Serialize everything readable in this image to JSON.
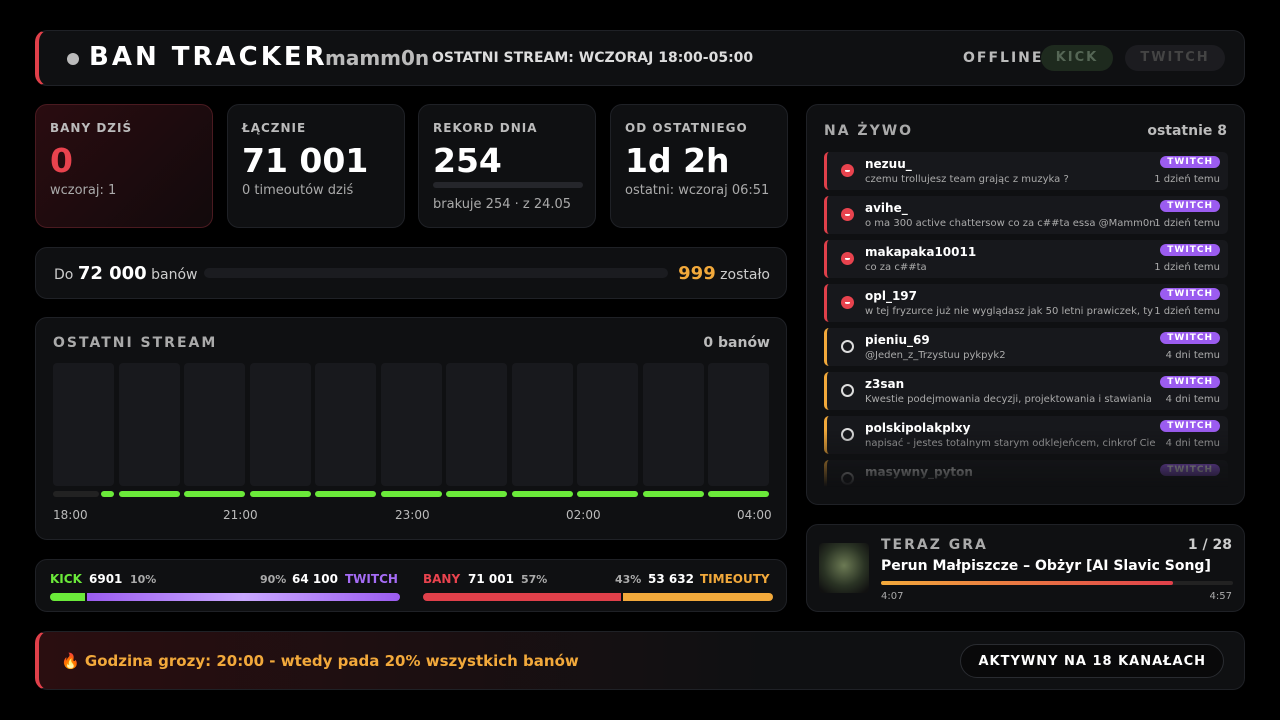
{
  "header": {
    "title": "BAN TRACKER",
    "channel": "mamm0n",
    "last_stream": "OSTATNI STREAM: WCZORAJ 18:00-05:00",
    "status": "OFFLINE",
    "platforms": [
      "KICK",
      "TWITCH"
    ]
  },
  "stats": [
    {
      "label": "BANY DZIŚ",
      "value": "0",
      "sub": "wczoraj: 1"
    },
    {
      "label": "ŁĄCZNIE",
      "value": "71 001",
      "sub": "0 timeoutów dziś"
    },
    {
      "label": "REKORD DNIA",
      "value": "254",
      "sub": "brakuje 254 · z 24.05"
    },
    {
      "label": "OD OSTATNIEGO",
      "value": "1d 2h",
      "sub": "ostatni: wczoraj 06:51"
    }
  ],
  "goal": {
    "prefix": "Do",
    "target": "72 000",
    "unit": "banów",
    "remaining": "999",
    "remaining_label": "zostało"
  },
  "last_stream": {
    "title": "OSTATNI STREAM",
    "total": "0 banów",
    "times": [
      "18:00",
      "21:00",
      "23:00",
      "02:00",
      "04:00"
    ]
  },
  "split": {
    "kick": {
      "name": "KICK",
      "count": "6901",
      "share": "10%"
    },
    "twitch": {
      "name": "TWITCH",
      "count": "64 100",
      "share": "90%"
    },
    "bans": {
      "name": "BANY",
      "count": "71 001",
      "share": "57%"
    },
    "timeouts": {
      "name": "TIMEOUTY",
      "count": "53 632",
      "share": "43%"
    }
  },
  "feed": {
    "title": "NA ŻYWO",
    "subtitle": "ostatnie 8",
    "items": [
      {
        "user": "nezuu_",
        "message": "czemu trollujesz team grając z muzyka ?",
        "platform": "TWITCH",
        "time": "1 dzień temu",
        "action": "ban"
      },
      {
        "user": "avihe_",
        "message": "o ma 300 active chattersow co za c##ta essa @Mamm0n",
        "platform": "TWITCH",
        "time": "1 dzień temu",
        "action": "ban"
      },
      {
        "user": "makapaka10011",
        "message": "co za c##ta",
        "platform": "TWITCH",
        "time": "1 dzień temu",
        "action": "ban"
      },
      {
        "user": "opl_197",
        "message": "w tej fryzurce już nie wyglądasz jak 50 letni prawiczek, ty",
        "platform": "TWITCH",
        "time": "1 dzień temu",
        "action": "ban"
      },
      {
        "user": "pieniu_69",
        "message": "@Jeden_z_Trzystuu pykpyk2",
        "platform": "TWITCH",
        "time": "4 dni temu",
        "action": "timeout"
      },
      {
        "user": "z3san",
        "message": "Kwestie podejmowania decyzji, projektowania i stawiania",
        "platform": "TWITCH",
        "time": "4 dni temu",
        "action": "timeout"
      },
      {
        "user": "polskipolakplxy",
        "message": "napisać - jestes totalnym starym odklejeńcem, cinkrof Cie",
        "platform": "TWITCH",
        "time": "4 dni temu",
        "action": "timeout"
      },
      {
        "user": "masywny_pyton",
        "platform": "TWITCH",
        "action": "timeout"
      }
    ]
  },
  "now_playing": {
    "label": "TERAZ GRA",
    "position": "1 / 28",
    "track": "Perun Małpiszcze – Obżyr [AI Slavic Song]",
    "elapsed": "4:07",
    "duration": "4:57"
  },
  "footer": {
    "insight": "🔥 Godzina grozy: 20:00 - wtedy pada 20% wszystkich banów",
    "channels": "AKTYWNY NA 18 KANAŁACH"
  }
}
